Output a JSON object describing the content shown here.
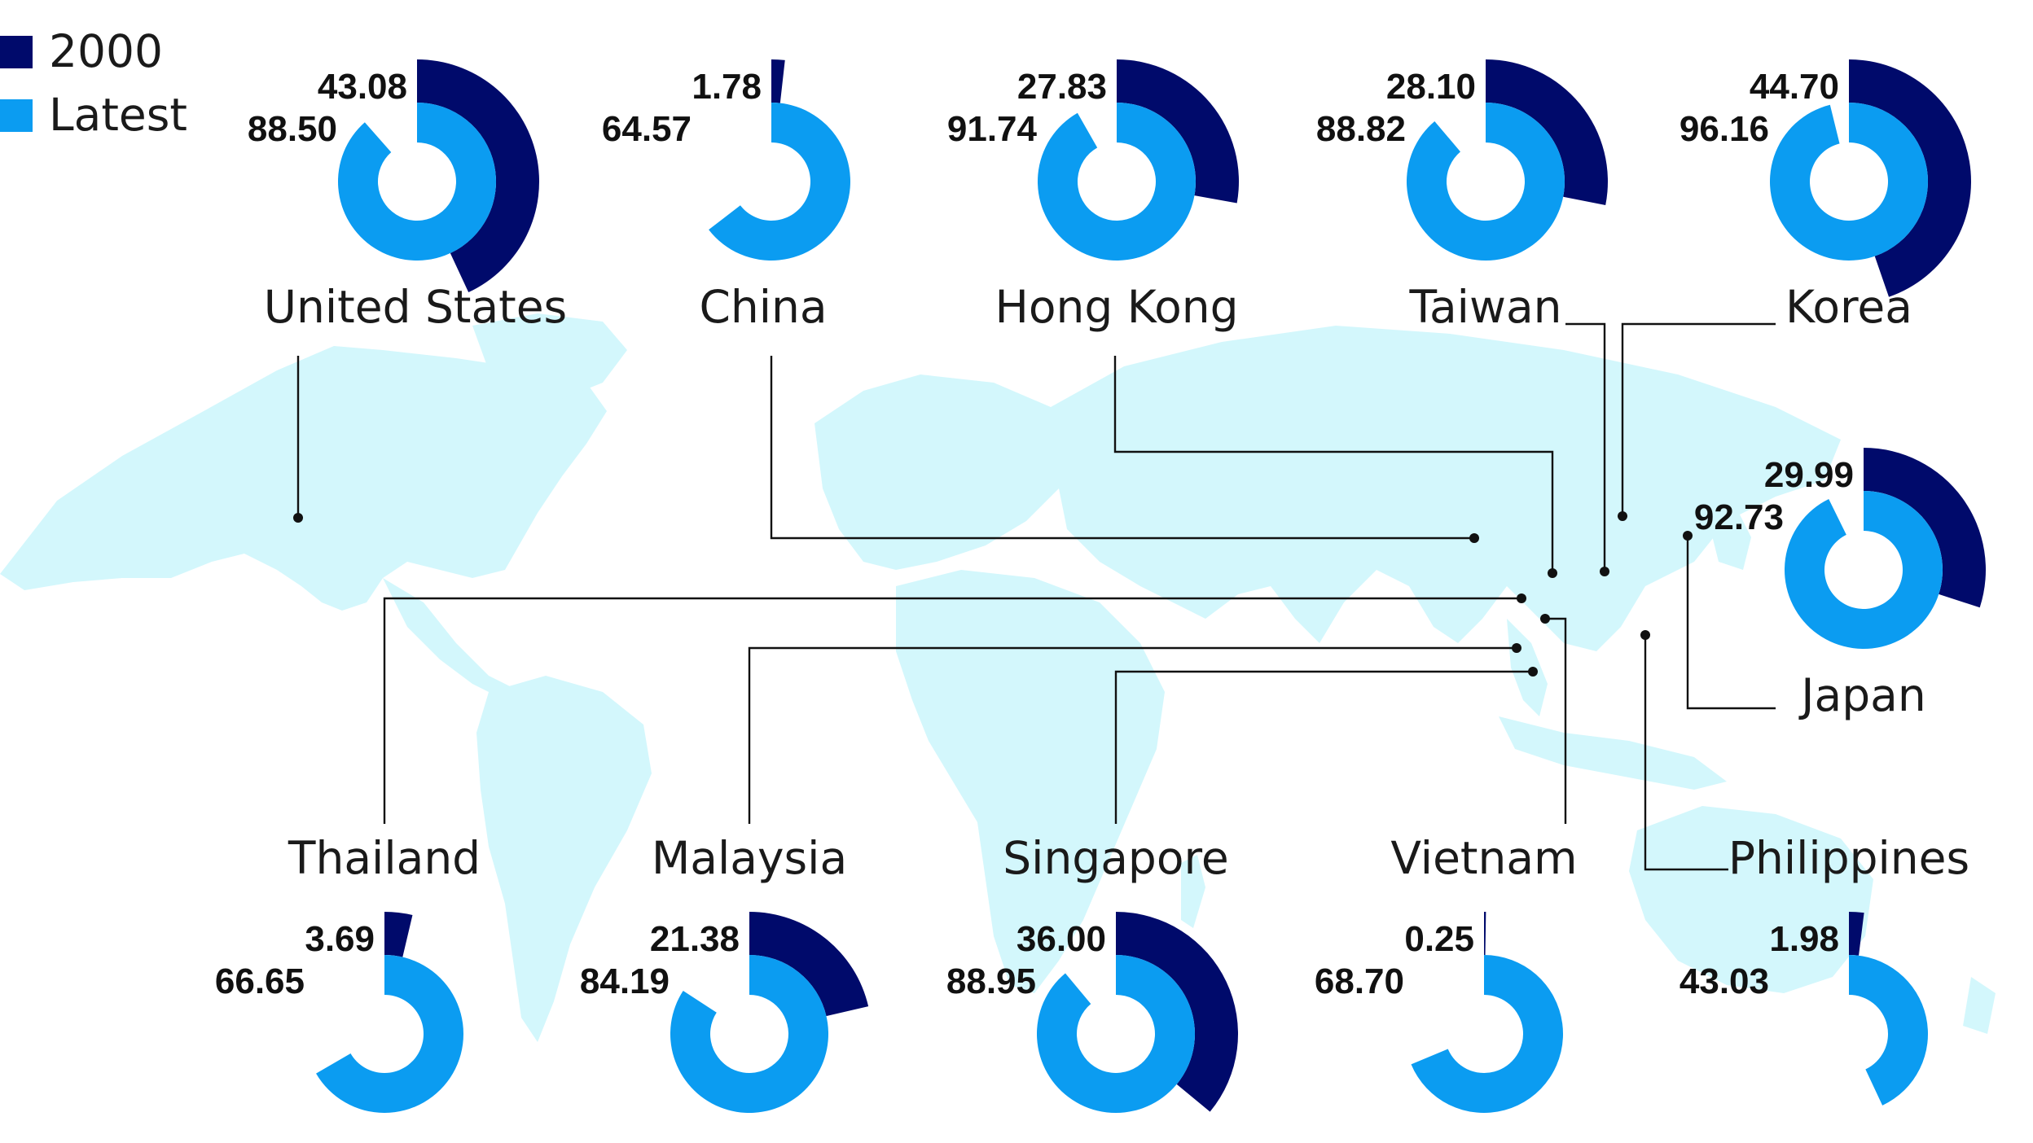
{
  "colors": {
    "series_2000": "#000a6b",
    "series_latest": "#0b9cf1",
    "map": "#d3f7fc",
    "leader": "#111111"
  },
  "legend": {
    "items": [
      {
        "label": "2000",
        "color": "#000a6b"
      },
      {
        "label": "Latest",
        "color": "#0b9cf1"
      }
    ]
  },
  "chart_data": {
    "type": "radial-bar",
    "scale_max": 100,
    "series": [
      {
        "name": "2000",
        "key": "v2000"
      },
      {
        "name": "Latest",
        "key": "latest"
      }
    ],
    "countries": [
      {
        "name": "United States",
        "v2000": "43.08",
        "latest": "88.50"
      },
      {
        "name": "China",
        "v2000": "1.78",
        "latest": "64.57"
      },
      {
        "name": "Hong Kong",
        "v2000": "27.83",
        "latest": "91.74"
      },
      {
        "name": "Taiwan",
        "v2000": "28.10",
        "latest": "88.82"
      },
      {
        "name": "Korea",
        "v2000": "44.70",
        "latest": "96.16"
      },
      {
        "name": "Japan",
        "v2000": "29.99",
        "latest": "92.73"
      },
      {
        "name": "Thailand",
        "v2000": "3.69",
        "latest": "66.65"
      },
      {
        "name": "Malaysia",
        "v2000": "21.38",
        "latest": "84.19"
      },
      {
        "name": "Singapore",
        "v2000": "36.00",
        "latest": "88.95"
      },
      {
        "name": "Vietnam",
        "v2000": "0.25",
        "latest": "68.70"
      },
      {
        "name": "Philippines",
        "v2000": "1.98",
        "latest": "43.03"
      }
    ]
  }
}
